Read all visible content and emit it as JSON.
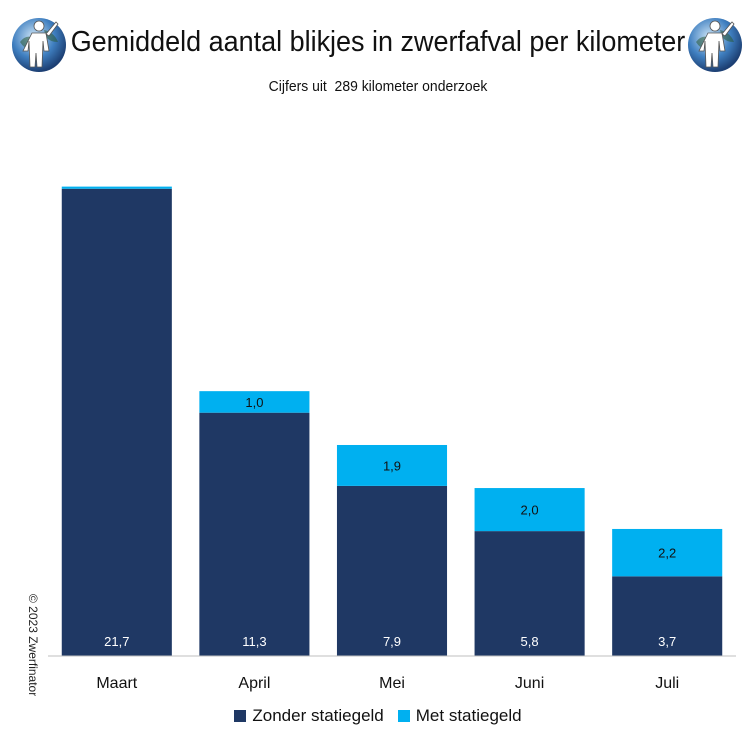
{
  "title": "Gemiddeld aantal blikjes in zwerfafval per kilometer",
  "subtitle": "Cijfers uit  289 kilometer onderzoek",
  "copyright": "© 2023 Zwerfinator",
  "colors": {
    "zonder": "#1f3864",
    "met": "#00b0f0",
    "axis": "#bfbfbf"
  },
  "logos": {
    "left": "zwerfinator-globe-logo",
    "right": "zwerfinator-globe-logo"
  },
  "chart_data": {
    "type": "bar",
    "stacked": true,
    "title": "Gemiddeld aantal blikjes in zwerfafval per kilometer",
    "subtitle": "Cijfers uit  289 kilometer onderzoek",
    "categories": [
      "Maart",
      "April",
      "Mei",
      "Juni",
      "Juli"
    ],
    "series": [
      {
        "name": "Zonder statiegeld",
        "color": "#1f3864",
        "values": [
          21.7,
          11.3,
          7.9,
          5.8,
          3.7
        ],
        "labels": [
          "21,7",
          "11,3",
          "7,9",
          "5,8",
          "3,7"
        ]
      },
      {
        "name": "Met statiegeld",
        "color": "#00b0f0",
        "values": [
          0.1,
          1.0,
          1.9,
          2.0,
          2.2
        ],
        "labels": [
          "",
          "1,0",
          "1,9",
          "2,0",
          "2,2"
        ]
      }
    ],
    "ylim": [
      0,
      23.5
    ],
    "grid": false,
    "legend": "bottom-center"
  }
}
